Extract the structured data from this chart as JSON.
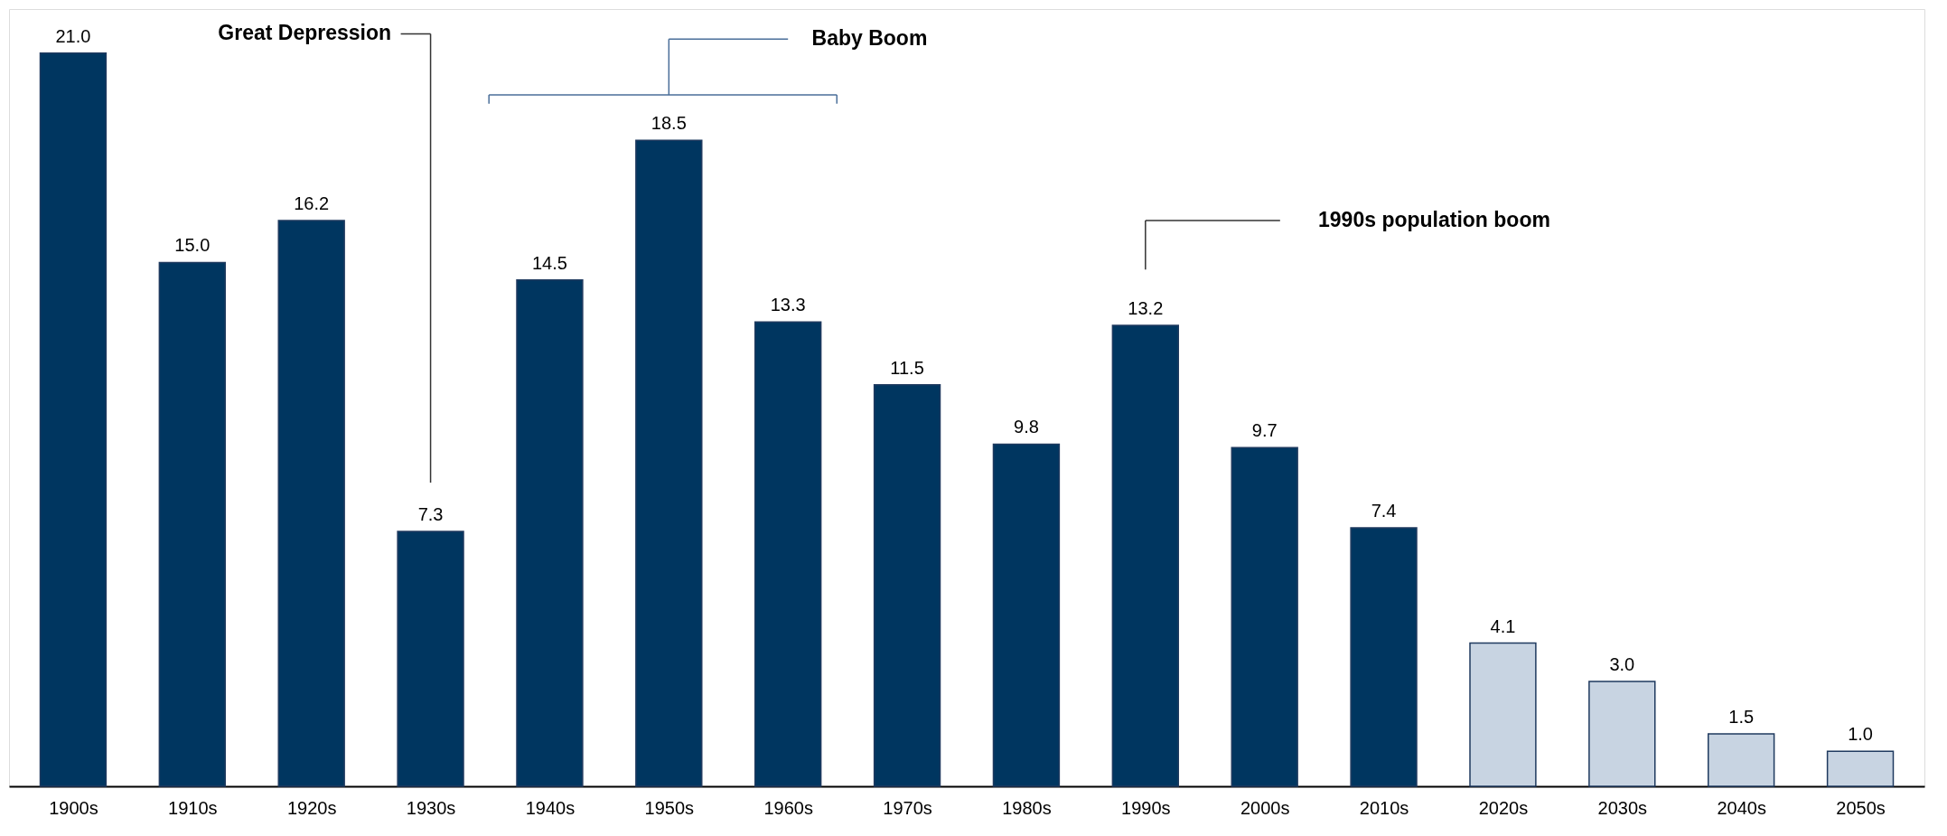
{
  "chart_data": {
    "type": "bar",
    "categories": [
      "1900s",
      "1910s",
      "1920s",
      "1930s",
      "1940s",
      "1950s",
      "1960s",
      "1970s",
      "1980s",
      "1990s",
      "2000s",
      "2010s",
      "2020s",
      "2030s",
      "2040s",
      "2050s"
    ],
    "values": [
      21.0,
      15.0,
      16.2,
      7.3,
      14.5,
      18.5,
      13.3,
      11.5,
      9.8,
      13.2,
      9.7,
      7.4,
      4.1,
      3.0,
      1.5,
      1.0
    ],
    "colors": [
      "#003660",
      "#003660",
      "#003660",
      "#003660",
      "#003660",
      "#003660",
      "#003660",
      "#003660",
      "#003660",
      "#003660",
      "#003660",
      "#003660",
      "#c8d4e2",
      "#c8d4e2",
      "#c8d4e2",
      "#c8d4e2"
    ],
    "value_labels": [
      "21.0",
      "15.0",
      "16.2",
      "7.3",
      "14.5",
      "18.5",
      "13.3",
      "11.5",
      "9.8",
      "13.2",
      "9.7",
      "7.4",
      "4.1",
      "3.0",
      "1.5",
      "1.0"
    ],
    "grid": false,
    "annotations": [
      "Great Depression",
      "Baby Boom",
      "1990s population boom"
    ]
  }
}
